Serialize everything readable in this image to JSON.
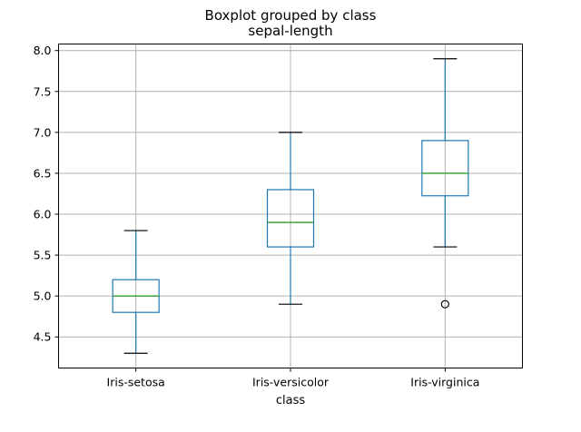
{
  "chart_data": {
    "type": "boxplot",
    "title": "Boxplot grouped by class",
    "subtitle": "sepal-length",
    "xlabel": "class",
    "ylabel": "",
    "ylim": [
      4.12,
      8.08
    ],
    "yticks": [
      "4.5",
      "5.0",
      "5.5",
      "6.0",
      "6.5",
      "7.0",
      "7.5",
      "8.0"
    ],
    "grid": true,
    "colors": {
      "box": "#1f77b4",
      "median": "#2ca02c",
      "cap": "#000000",
      "flier": "#000000"
    },
    "categories": [
      "Iris-setosa",
      "Iris-versicolor",
      "Iris-virginica"
    ],
    "boxes": [
      {
        "category": "Iris-setosa",
        "whisker_low": 4.3,
        "q1": 4.8,
        "median": 5.0,
        "q3": 5.2,
        "whisker_high": 5.8,
        "fliers": []
      },
      {
        "category": "Iris-versicolor",
        "whisker_low": 4.9,
        "q1": 5.6,
        "median": 5.9,
        "q3": 6.3,
        "whisker_high": 7.0,
        "fliers": []
      },
      {
        "category": "Iris-virginica",
        "whisker_low": 5.6,
        "q1": 6.225,
        "median": 6.5,
        "q3": 6.9,
        "whisker_high": 7.9,
        "fliers": [
          4.9
        ]
      }
    ]
  }
}
